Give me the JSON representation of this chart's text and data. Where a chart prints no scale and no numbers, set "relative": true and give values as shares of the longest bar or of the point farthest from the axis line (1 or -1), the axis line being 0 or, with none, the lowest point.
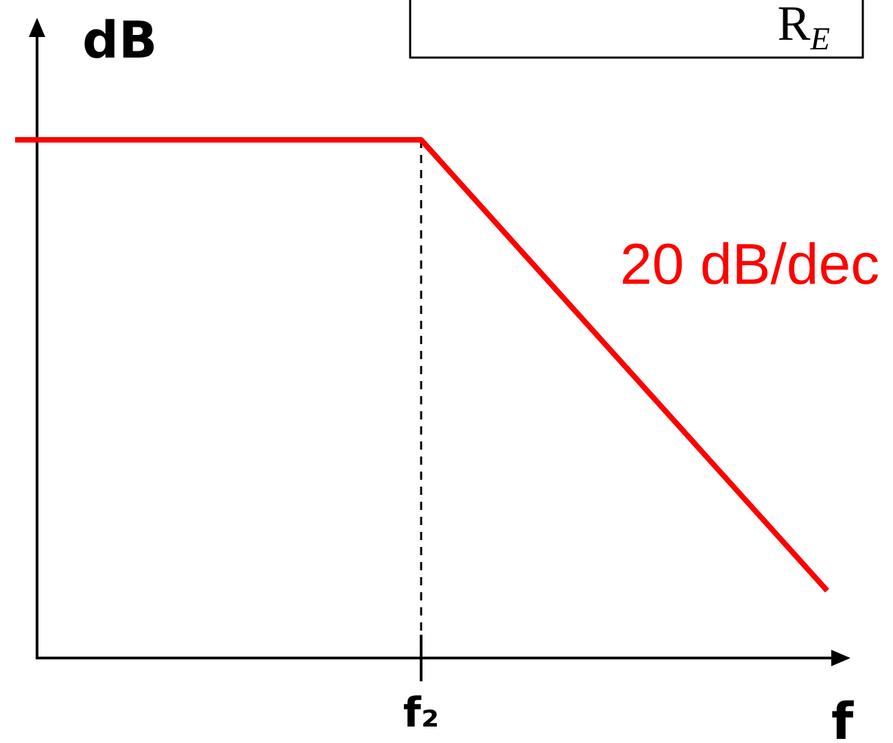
{
  "chart_data": {
    "type": "line",
    "xlabel": "f",
    "ylabel": "dB",
    "categories": [
      null,
      null,
      null
    ],
    "relative": true,
    "series": [
      {
        "color": "#ff0000",
        "values": [
          1,
          1,
          0.13
        ]
      }
    ],
    "ref_lines": [
      {
        "axis": "x",
        "value": "f₂",
        "line_style": "dashed",
        "color": "#000000"
      }
    ],
    "annotations": [
      "20 dB/dec",
      "R$_{E}$"
    ]
  }
}
